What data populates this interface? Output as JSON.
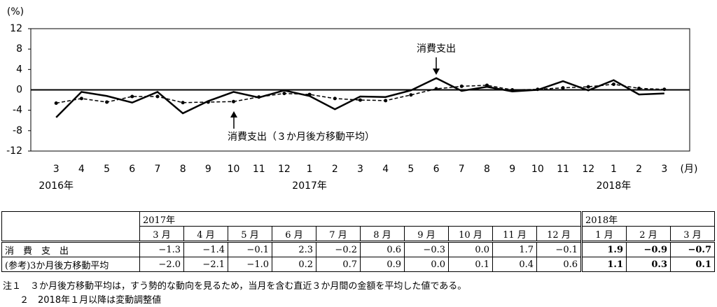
{
  "chart_data": {
    "type": "line",
    "y_unit": "(%)",
    "x_unit": "(月)",
    "categories": [
      "3",
      "4",
      "5",
      "6",
      "7",
      "8",
      "9",
      "10",
      "11",
      "12",
      "1",
      "2",
      "3",
      "4",
      "5",
      "6",
      "7",
      "8",
      "9",
      "10",
      "11",
      "12",
      "1",
      "2",
      "3"
    ],
    "category_years": [
      "2016年",
      null,
      null,
      null,
      null,
      null,
      null,
      null,
      null,
      null,
      "2017年",
      null,
      null,
      null,
      null,
      null,
      null,
      null,
      null,
      null,
      null,
      null,
      "2018年",
      null,
      null
    ],
    "series": [
      {
        "name": "消費支出",
        "color": "#000000",
        "dash": false,
        "values": [
          -5.4,
          -0.4,
          -1.2,
          -2.5,
          -0.4,
          -4.6,
          -2.2,
          -0.4,
          -1.5,
          -0.1,
          -1.2,
          -3.8,
          -1.3,
          -1.4,
          -0.1,
          2.3,
          -0.2,
          0.6,
          -0.3,
          0.0,
          1.7,
          -0.1,
          1.9,
          -0.9,
          -0.7
        ]
      },
      {
        "name": "消費支出（３か月後方移動平均）",
        "color": "#000000",
        "dash": true,
        "values": [
          -2.6,
          -1.7,
          -2.4,
          -1.3,
          -1.3,
          -2.5,
          -2.4,
          -2.3,
          -1.4,
          -0.7,
          -0.9,
          -1.7,
          -2.0,
          -2.1,
          -1.0,
          0.2,
          0.7,
          0.9,
          0.0,
          0.1,
          0.4,
          0.6,
          1.1,
          0.3,
          0.1
        ]
      }
    ],
    "annotations": [
      "消費支出",
      "消費支出（３か月後方移動平均）"
    ],
    "ylim": [
      -12,
      12
    ],
    "yticks": [
      12,
      8,
      4,
      0,
      -4,
      -8,
      -12
    ],
    "grid": false
  },
  "table": {
    "years": [
      "2017年",
      "2018年"
    ],
    "months": [
      "3 月",
      "4 月",
      "5 月",
      "6 月",
      "7 月",
      "8 月",
      "9 月",
      "10 月",
      "11 月",
      "12 月",
      "1 月",
      "2 月",
      "3 月"
    ],
    "rows": [
      [
        "消　費　支　出",
        "−1.3",
        "−1.4",
        "−0.1",
        "2.3",
        "−0.2",
        "0.6",
        "−0.3",
        "0.0",
        "1.7",
        "−0.1",
        "1.9",
        "−0.9",
        "−0.7"
      ],
      [
        "(参考)3か月後方移動平均",
        "−2.0",
        "−2.1",
        "−1.0",
        "0.2",
        "0.7",
        "0.9",
        "0.0",
        "0.1",
        "0.4",
        "0.6",
        "1.1",
        "0.3",
        "0.1"
      ]
    ]
  },
  "notes": [
    "注１　３か月後方移動平均は，すう勢的な動向を見るため，当月を含む直近３か月間の金額を平均した値である。",
    "２　2018年１月以降は変動調整値"
  ]
}
